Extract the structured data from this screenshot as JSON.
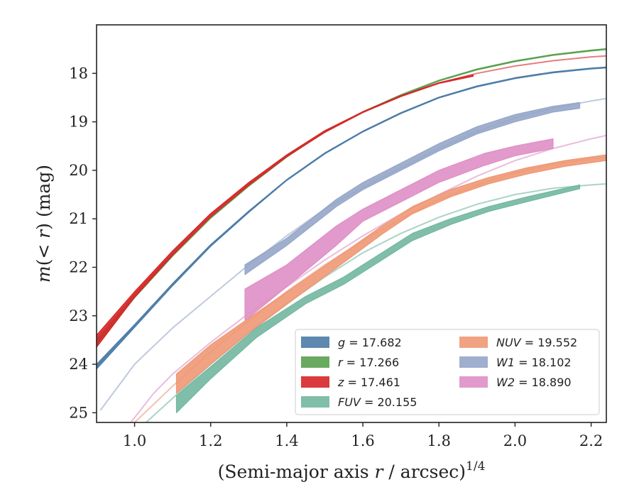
{
  "chart_data": {
    "type": "line",
    "title": "",
    "xlabel": "(Semi-major axis r / arcsec)",
    "xlabel_parts": {
      "prefix": "(Semi-major axis ",
      "var": "r",
      "suffix": " / arcsec)",
      "exponent": "1/4"
    },
    "ylabel": "m(< r) (mag)",
    "ylabel_parts": {
      "var": "m",
      "paren_open": "(",
      "lt": "< ",
      "var2": "r",
      "paren_close": ")",
      "unit": " (mag)"
    },
    "xlim": [
      0.9,
      2.24
    ],
    "ylim": [
      25.2,
      17.0
    ],
    "y_inverted": true,
    "x_ticks": [
      1.0,
      1.2,
      1.4,
      1.6,
      1.8,
      2.0,
      2.2
    ],
    "x_tick_labels": [
      "1.0",
      "1.2",
      "1.4",
      "1.6",
      "1.8",
      "2.0",
      "2.2"
    ],
    "y_ticks": [
      18,
      19,
      20,
      21,
      22,
      23,
      24,
      25
    ],
    "y_tick_labels": [
      "18",
      "19",
      "20",
      "21",
      "22",
      "23",
      "24",
      "25"
    ],
    "grid": false,
    "legend_position": "lower-right",
    "series": [
      {
        "name": "g = 17.682",
        "var": "g",
        "eq": " = ",
        "value": "17.682",
        "color": "#4c7ba6",
        "model": {
          "x": [
            0.9,
            1.0,
            1.1,
            1.2,
            1.3,
            1.4,
            1.5,
            1.6,
            1.7,
            1.8,
            1.9,
            2.0,
            2.1,
            2.2,
            2.24
          ],
          "y": [
            24.05,
            23.2,
            22.35,
            21.55,
            20.85,
            20.2,
            19.65,
            19.2,
            18.82,
            18.5,
            18.27,
            18.1,
            17.98,
            17.9,
            17.88
          ]
        },
        "band": {
          "x": [
            0.9,
            1.0,
            1.1,
            1.2,
            1.3,
            1.4,
            1.5,
            1.6,
            1.7,
            1.8,
            1.9,
            2.0,
            2.1,
            2.2,
            2.24
          ],
          "lo": [
            24.0,
            23.18,
            22.33,
            21.53,
            20.84,
            20.19,
            19.64,
            19.19,
            18.81,
            18.49,
            18.26,
            18.09,
            17.97,
            17.89,
            17.87
          ],
          "hi": [
            24.1,
            23.24,
            22.38,
            21.57,
            20.87,
            20.21,
            19.66,
            19.21,
            18.83,
            18.51,
            18.28,
            18.11,
            17.99,
            17.91,
            17.89
          ]
        }
      },
      {
        "name": "r = 17.266",
        "var": "r",
        "eq": " = ",
        "value": "17.266",
        "color": "#59a14f",
        "model": {
          "x": [
            0.9,
            1.0,
            1.1,
            1.2,
            1.3,
            1.4,
            1.5,
            1.6,
            1.7,
            1.8,
            1.9,
            2.0,
            2.1,
            2.2,
            2.24
          ],
          "y": [
            23.55,
            22.6,
            21.75,
            20.98,
            20.32,
            19.72,
            19.2,
            18.8,
            18.45,
            18.15,
            17.92,
            17.75,
            17.62,
            17.53,
            17.5
          ]
        },
        "band": {
          "x": [
            0.9,
            1.0,
            1.1,
            1.2,
            1.3,
            1.4,
            1.5,
            1.6,
            1.7,
            1.8,
            1.9,
            2.0,
            2.1,
            2.2,
            2.24
          ],
          "lo": [
            23.5,
            22.58,
            21.73,
            20.97,
            20.31,
            19.71,
            19.19,
            18.79,
            18.44,
            18.14,
            17.91,
            17.74,
            17.61,
            17.52,
            17.49
          ],
          "hi": [
            23.6,
            22.63,
            21.77,
            20.99,
            20.33,
            19.73,
            19.21,
            18.81,
            18.46,
            18.16,
            17.93,
            17.76,
            17.63,
            17.54,
            17.51
          ]
        }
      },
      {
        "name": "z = 17.461",
        "var": "z",
        "eq": " = ",
        "value": "17.461",
        "color": "#d62728",
        "model": {
          "x": [
            0.9,
            1.0,
            1.1,
            1.2,
            1.3,
            1.4,
            1.5,
            1.6,
            1.7,
            1.8,
            1.9,
            2.0,
            2.1,
            2.2,
            2.24
          ],
          "y": [
            23.5,
            22.55,
            21.7,
            20.92,
            20.28,
            19.7,
            19.2,
            18.8,
            18.47,
            18.2,
            18.0,
            17.85,
            17.74,
            17.66,
            17.64
          ]
        },
        "band": {
          "x": [
            0.9,
            1.0,
            1.1,
            1.2,
            1.3,
            1.4,
            1.5,
            1.6,
            1.7,
            1.8,
            1.89
          ],
          "lo": [
            23.4,
            22.5,
            21.66,
            20.89,
            20.25,
            19.68,
            19.18,
            18.79,
            18.46,
            18.19,
            18.03
          ],
          "hi": [
            23.65,
            22.62,
            21.75,
            20.96,
            20.31,
            19.72,
            19.22,
            18.81,
            18.48,
            18.21,
            18.06
          ]
        }
      },
      {
        "name": "FUV = 20.155",
        "var": "FUV",
        "eq": " = ",
        "value": "20.155",
        "color": "#72b7a1",
        "model": {
          "x": [
            1.03,
            1.1,
            1.2,
            1.3,
            1.4,
            1.5,
            1.6,
            1.7,
            1.8,
            1.9,
            2.0,
            2.1,
            2.2,
            2.24
          ],
          "y": [
            25.2,
            24.7,
            24.0,
            23.35,
            22.75,
            22.2,
            21.7,
            21.3,
            20.97,
            20.7,
            20.5,
            20.37,
            20.3,
            20.28
          ]
        },
        "band": {
          "x": [
            1.11,
            1.2,
            1.32,
            1.45,
            1.55,
            1.65,
            1.73,
            1.83,
            1.93,
            2.03,
            2.17
          ],
          "lo": [
            24.65,
            24.05,
            23.25,
            22.6,
            22.2,
            21.7,
            21.3,
            21.0,
            20.75,
            20.55,
            20.3
          ],
          "hi": [
            25.0,
            24.3,
            23.45,
            22.75,
            22.35,
            21.85,
            21.45,
            21.12,
            20.85,
            20.65,
            20.38
          ]
        }
      },
      {
        "name": "NUV = 19.552",
        "var": "NUV",
        "eq": " = ",
        "value": "19.552",
        "color": "#ee9874",
        "model": {
          "x": [
            1.0,
            1.1,
            1.2,
            1.3,
            1.4,
            1.5,
            1.6,
            1.7,
            1.8,
            1.9,
            2.0,
            2.1,
            2.2,
            2.24
          ],
          "y": [
            25.2,
            24.45,
            23.75,
            23.1,
            22.5,
            21.95,
            21.45,
            21.0,
            20.6,
            20.3,
            20.05,
            19.87,
            19.76,
            19.73
          ]
        },
        "band": {
          "x": [
            1.11,
            1.2,
            1.3,
            1.42,
            1.55,
            1.65,
            1.73,
            1.83,
            1.93,
            2.03,
            2.13,
            2.24
          ],
          "lo": [
            24.2,
            23.6,
            23.05,
            22.4,
            21.7,
            21.15,
            20.75,
            20.4,
            20.15,
            19.95,
            19.8,
            19.68
          ],
          "hi": [
            24.6,
            24.0,
            23.35,
            22.65,
            21.9,
            21.32,
            20.9,
            20.55,
            20.28,
            20.08,
            19.92,
            19.8
          ]
        }
      },
      {
        "name": "W1 = 18.102",
        "var": "W1",
        "eq": " = ",
        "value": "18.102",
        "color": "#95a6c8",
        "model": {
          "x": [
            0.91,
            1.0,
            1.1,
            1.2,
            1.3,
            1.4,
            1.5,
            1.6,
            1.7,
            1.8,
            1.9,
            2.0,
            2.1,
            2.2,
            2.24
          ],
          "y": [
            24.95,
            24.0,
            23.25,
            22.6,
            21.95,
            21.35,
            20.8,
            20.35,
            19.95,
            19.55,
            19.2,
            18.92,
            18.72,
            18.57,
            18.52
          ]
        },
        "band": {
          "x": [
            1.29,
            1.4,
            1.53,
            1.6,
            1.7,
            1.8,
            1.9,
            2.0,
            2.1,
            2.17
          ],
          "lo": [
            21.95,
            21.4,
            20.6,
            20.25,
            19.85,
            19.45,
            19.1,
            18.85,
            18.68,
            18.6
          ],
          "hi": [
            22.15,
            21.55,
            20.75,
            20.4,
            20.0,
            19.6,
            19.25,
            19.0,
            18.8,
            18.72
          ]
        }
      },
      {
        "name": "W2 = 18.890",
        "var": "W2",
        "eq": " = ",
        "value": "18.890",
        "color": "#de8fc5",
        "model": {
          "x": [
            0.99,
            1.05,
            1.1,
            1.2,
            1.3,
            1.4,
            1.5,
            1.6,
            1.7,
            1.8,
            1.9,
            2.0,
            2.1,
            2.2,
            2.24
          ],
          "y": [
            25.2,
            24.6,
            24.2,
            23.55,
            22.95,
            22.4,
            21.85,
            21.35,
            20.9,
            20.5,
            20.12,
            19.8,
            19.55,
            19.35,
            19.28
          ]
        },
        "band": {
          "x": [
            1.29,
            1.4,
            1.53,
            1.6,
            1.7,
            1.8,
            1.92,
            2.0,
            2.1
          ],
          "lo": [
            22.45,
            21.95,
            21.15,
            20.8,
            20.4,
            20.0,
            19.65,
            19.5,
            19.35
          ],
          "hi": [
            23.1,
            22.4,
            21.55,
            21.05,
            20.65,
            20.25,
            19.9,
            19.7,
            19.55
          ]
        }
      }
    ]
  }
}
